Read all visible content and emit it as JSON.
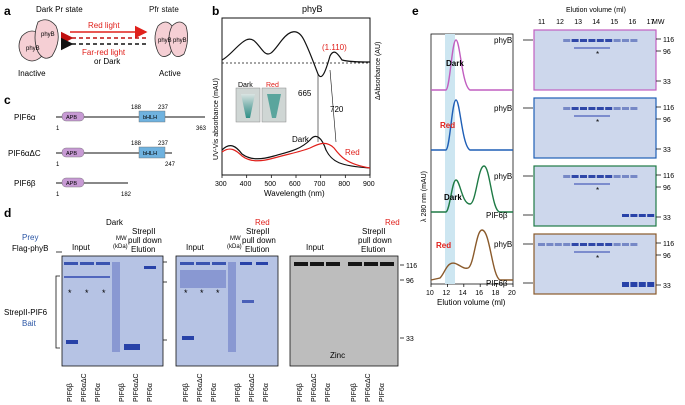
{
  "panels": {
    "a": {
      "letter": "a",
      "dark_state": "Dark Pr state",
      "pfr_state": "Pfr state",
      "red_light": "Red light",
      "far_red": "Far-red light",
      "or_dark": "or Dark",
      "inactive": "Inactive",
      "active": "Active",
      "phyB": "phyB"
    },
    "b": {
      "letter": "b",
      "title": "phyB",
      "ylabel_left": "UV-Vis absorbance (mAU)",
      "ylabel_right": "ΔAbsorbance (AU)",
      "xlabel": "Wavelength (nm)",
      "ratio": "(1.110)",
      "peak_665": "665",
      "peak_720": "720",
      "dark": "Dark",
      "red": "Red",
      "inset_dark": "Dark",
      "inset_red": "Red"
    },
    "c": {
      "letter": "c",
      "constructs": [
        {
          "name": "PIF6α",
          "apb": "APB",
          "bhlh": "bHLH",
          "n188": "188",
          "n237": "237",
          "start": "1",
          "end": "363"
        },
        {
          "name": "PIF6αΔC",
          "apb": "APB",
          "bhlh": "bHLH",
          "n188": "188",
          "n237": "237",
          "start": "1",
          "end": "247"
        },
        {
          "name": "PIF6β",
          "apb": "APB",
          "start": "1",
          "end": "182"
        }
      ]
    },
    "d": {
      "letter": "d",
      "prey": "Prey",
      "flag_phyB": "Flag-phyB",
      "bait1": "StrepII-PIF6",
      "bait2": "Bait",
      "cond_dark": "Dark",
      "cond_red1": "Red",
      "cond_red2": "Red",
      "input": "Input",
      "mw": "MW",
      "kda": "(kDa)",
      "strep1": "StrepII",
      "strep2": "pull down",
      "strep3": "Elution",
      "zinc": "Zinc",
      "mw_116": "116",
      "mw_96": "96",
      "mw_33": "33",
      "star": "*",
      "lanes": [
        "PIF6β",
        "PIF6αΔC",
        "PIF6α"
      ]
    },
    "e": {
      "letter": "e",
      "ylabel": "λ 280 nm (mAU)",
      "xlabel": "Elution volume (ml)",
      "gel_title": "Elution volume (ml)",
      "fractions": [
        "11",
        "12",
        "13",
        "14",
        "15",
        "16",
        "17"
      ],
      "mw": "MW",
      "traces": [
        "Dark",
        "Red",
        "Dark",
        "Red"
      ],
      "xticks": [
        "10",
        "12",
        "14",
        "16",
        "18",
        "20"
      ],
      "phyB": "phyB",
      "pif6b": "PIF6β",
      "mw_116": "116",
      "mw_96": "96",
      "mw_33": "33",
      "star": "*"
    }
  },
  "colors": {
    "red": "#e0201b",
    "blue_text": "#2a55a5",
    "trace1": "#c15fc0",
    "trace2": "#1f5fb6",
    "trace3": "#1e7a45",
    "trace4": "#8a5a2b",
    "gel_bg": "#cdd7ec",
    "band": "#2f47a8"
  }
}
